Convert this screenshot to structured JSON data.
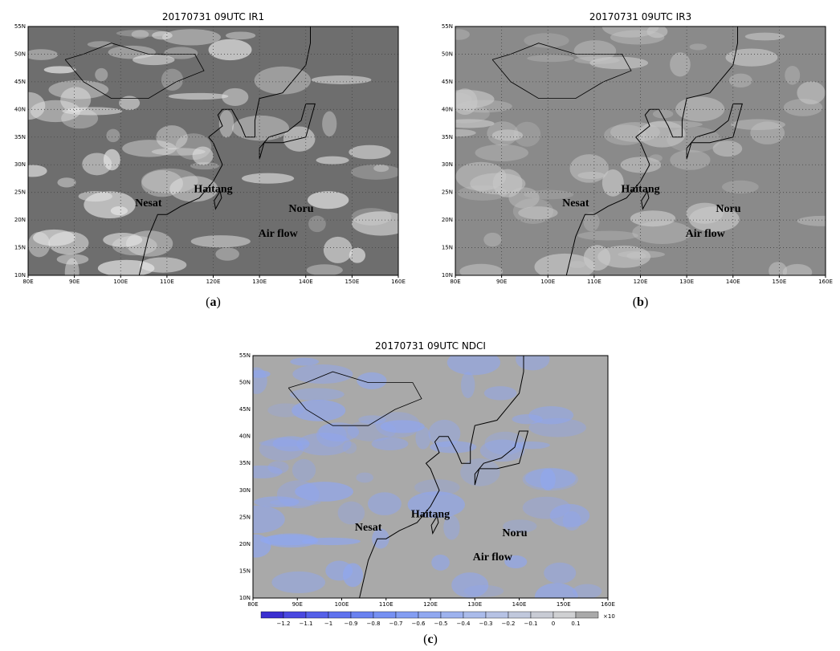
{
  "panels": [
    {
      "title": "20170731 09UTC IR1",
      "caption_open": "(",
      "caption_letter": "a",
      "caption_close": ")",
      "annotations": [
        "Nesat",
        "Haitang",
        "Noru",
        "Air flow"
      ]
    },
    {
      "title": "20170731 09UTC IR3",
      "caption_open": "(",
      "caption_letter": "b",
      "caption_close": ")",
      "annotations": [
        "Nesat",
        "Haitang",
        "Noru",
        "Air flow"
      ]
    },
    {
      "title": "20170731 09UTC NDCI",
      "caption_open": "(",
      "caption_letter": "c",
      "caption_close": ")",
      "annotations": [
        "Nesat",
        "Haitang",
        "Noru",
        "Air flow"
      ]
    }
  ],
  "lon_labels": [
    "80E",
    "90E",
    "100E",
    "110E",
    "120E",
    "130E",
    "140E",
    "150E",
    "160E"
  ],
  "lat_labels": [
    "10N",
    "15N",
    "20N",
    "25N",
    "30N",
    "35N",
    "40N",
    "45N",
    "50N",
    "55N"
  ],
  "colorbar": {
    "labels": [
      "−1.2",
      "−1.1",
      "−1",
      "−0.9",
      "−0.8",
      "−0.7",
      "−0.6",
      "−0.5",
      "−0.4",
      "−0.3",
      "−0.2",
      "−0.1",
      "0",
      "0.1"
    ],
    "unit": "×10",
    "colors": [
      "#3a2fd0",
      "#4a48e0",
      "#5560e8",
      "#5f72ee",
      "#6a82f0",
      "#7690f2",
      "#839df2",
      "#90a8f0",
      "#9db2ee",
      "#aabbea",
      "#b6c2e4",
      "#c0c8dc",
      "#c8cbd4",
      "#cfd0d2",
      "#a9a9a9"
    ]
  }
}
